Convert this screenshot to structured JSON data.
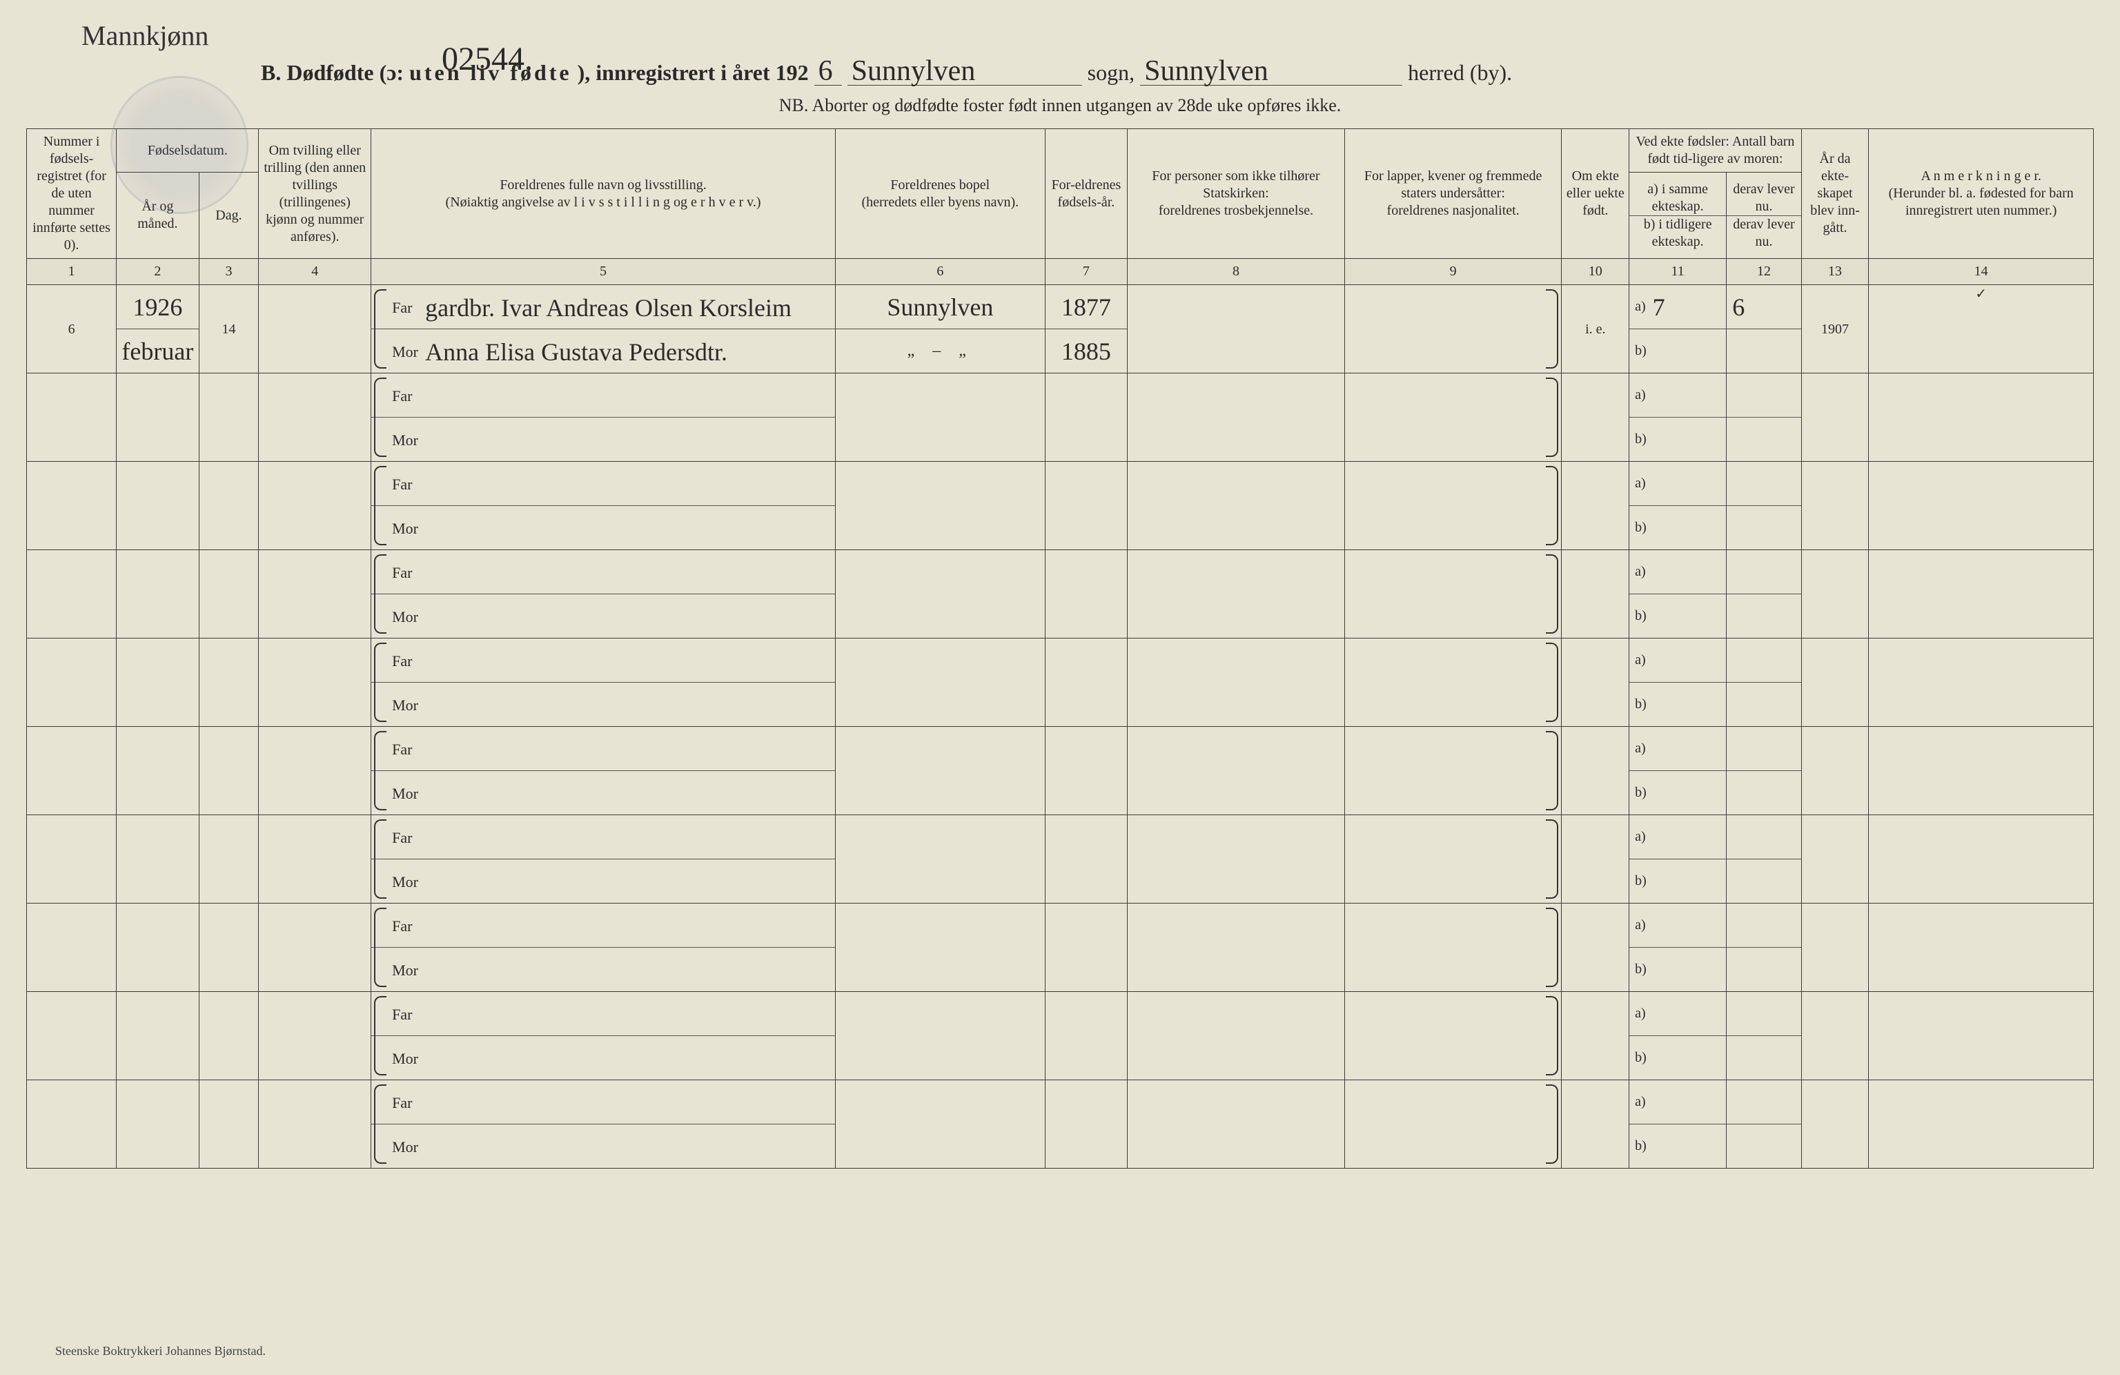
{
  "header": {
    "corner_hand": "Mannkjønn",
    "page_number": "02544.",
    "letter": "B.",
    "title_1": "Dødfødte (ɔ:",
    "title_2": "uten liv fødte",
    "title_3": "), innregistrert i året 192",
    "year_digit": "6",
    "sogn_fill": "Sunnylven",
    "sogn_label": "sogn,",
    "herred_fill": "Sunnylven",
    "herred_label": "herred (by).",
    "nb": "NB.  Aborter og dødfødte foster født innen utgangen av 28de uke opføres ikke."
  },
  "columns": {
    "c1": "Nummer i fødsels-registret (for de uten nummer innførte settes 0).",
    "c2_top": "Fødselsdatum.",
    "c2a": "År og måned.",
    "c2b": "Dag.",
    "c4": "Om tvilling eller trilling (den annen tvillings (trillingenes) kjønn og nummer anføres).",
    "c5_a": "Foreldrenes fulle navn og livsstilling.",
    "c5_b": "(Nøiaktig angivelse av  l i v s s t i l l i n g  og  e r h v e r v.)",
    "c6_a": "Foreldrenes bopel",
    "c6_b": "(herredets eller byens navn).",
    "c7": "For-eldrenes fødsels-år.",
    "c8_a": "For personer som ikke tilhører Statskirken:",
    "c8_b": "foreldrenes trosbekjennelse.",
    "c9_a": "For lapper, kvener og fremmede staters undersåtter:",
    "c9_b": "foreldrenes nasjonalitet.",
    "c10": "Om ekte eller uekte født.",
    "c11_top": "Ved ekte fødsler: Antall barn født tid-ligere av moren:",
    "c11a": "a) i samme ekteskap.",
    "c11b": "b) i tidligere ekteskap.",
    "c12a": "derav lever nu.",
    "c12b": "derav lever nu.",
    "c13": "År da ekte-skapet blev inn-gått.",
    "c14_a": "A n m e r k n i n g e r.",
    "c14_b": "(Herunder bl. a. fødested for barn innregistrert uten nummer.)",
    "nums": [
      "1",
      "2",
      "3",
      "4",
      "5",
      "6",
      "7",
      "8",
      "9",
      "10",
      "11",
      "12",
      "13",
      "14"
    ]
  },
  "row1": {
    "num": "6",
    "year": "1926",
    "month": "februar",
    "day": "14",
    "far_label": "Far",
    "mor_label": "Mor",
    "far_text": "gardbr. Ivar Andreas Olsen Korsleim",
    "mor_text": "Anna Elisa Gustava Pedersdtr.",
    "bopel_far": "Sunnylven",
    "bopel_mor_ditto": "„    –    „",
    "far_year": "1877",
    "mor_year": "1885",
    "ekte": "i. e.",
    "c11a_val": "7",
    "c12a_val": "6",
    "c13_val": "1907",
    "check": "✓"
  },
  "labels": {
    "far": "Far",
    "mor": "Mor",
    "a": "a)",
    "b": "b)"
  },
  "footer": "Steenske Boktrykkeri Johannes Bjørnstad."
}
